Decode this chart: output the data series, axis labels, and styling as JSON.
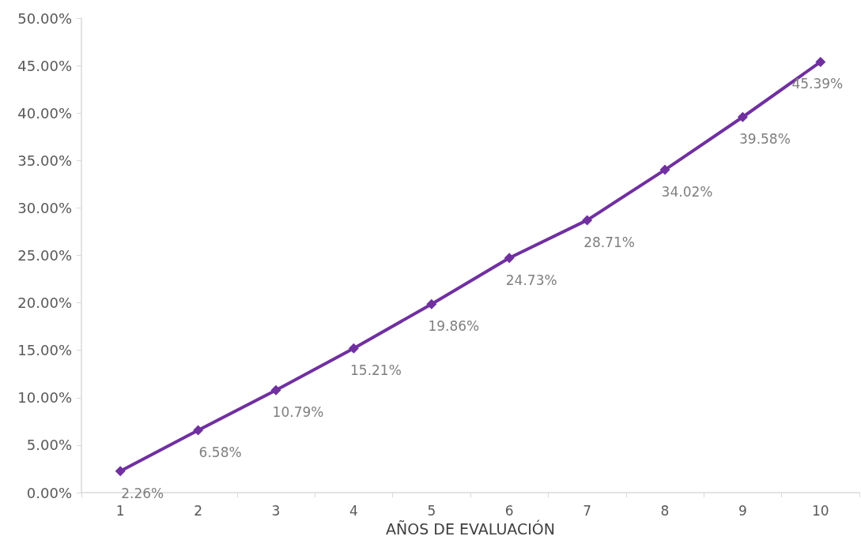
{
  "chart_data": {
    "type": "line",
    "xlabel": "AÑOS DE EVALUACIÓN",
    "categories": [
      "1",
      "2",
      "3",
      "4",
      "5",
      "6",
      "7",
      "8",
      "9",
      "10"
    ],
    "series": [
      {
        "color": "#7030a0",
        "values": [
          2.26,
          6.58,
          10.79,
          15.21,
          19.86,
          24.73,
          28.71,
          34.02,
          39.58,
          45.39
        ],
        "value_labels": [
          "2.26%",
          "6.58%",
          "10.79%",
          "15.21%",
          "19.86%",
          "24.73%",
          "28.71%",
          "34.02%",
          "39.58%",
          "45.39%"
        ]
      }
    ],
    "ylim": [
      0,
      50
    ],
    "yticks": [
      {
        "value": 0,
        "label": "0.00%"
      },
      {
        "value": 5,
        "label": "5.00%"
      },
      {
        "value": 10,
        "label": "10.00%"
      },
      {
        "value": 15,
        "label": "15.00%"
      },
      {
        "value": 20,
        "label": "20.00%"
      },
      {
        "value": 25,
        "label": "25.00%"
      },
      {
        "value": 30,
        "label": "30.00%"
      },
      {
        "value": 35,
        "label": "35.00%"
      },
      {
        "value": 40,
        "label": "40.00%"
      },
      {
        "value": 45,
        "label": "45.00%"
      },
      {
        "value": 50,
        "label": "50.00%"
      }
    ],
    "grid": false,
    "marker": "diamond",
    "line_style": "solid"
  }
}
